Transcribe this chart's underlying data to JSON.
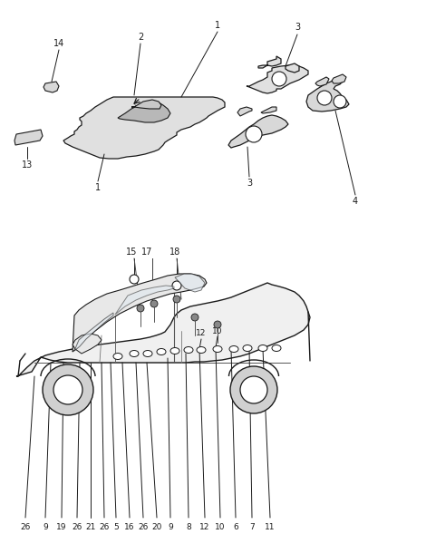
{
  "bg_color": "#ffffff",
  "line_color": "#1a1a1a",
  "lc2": "#333333"
}
